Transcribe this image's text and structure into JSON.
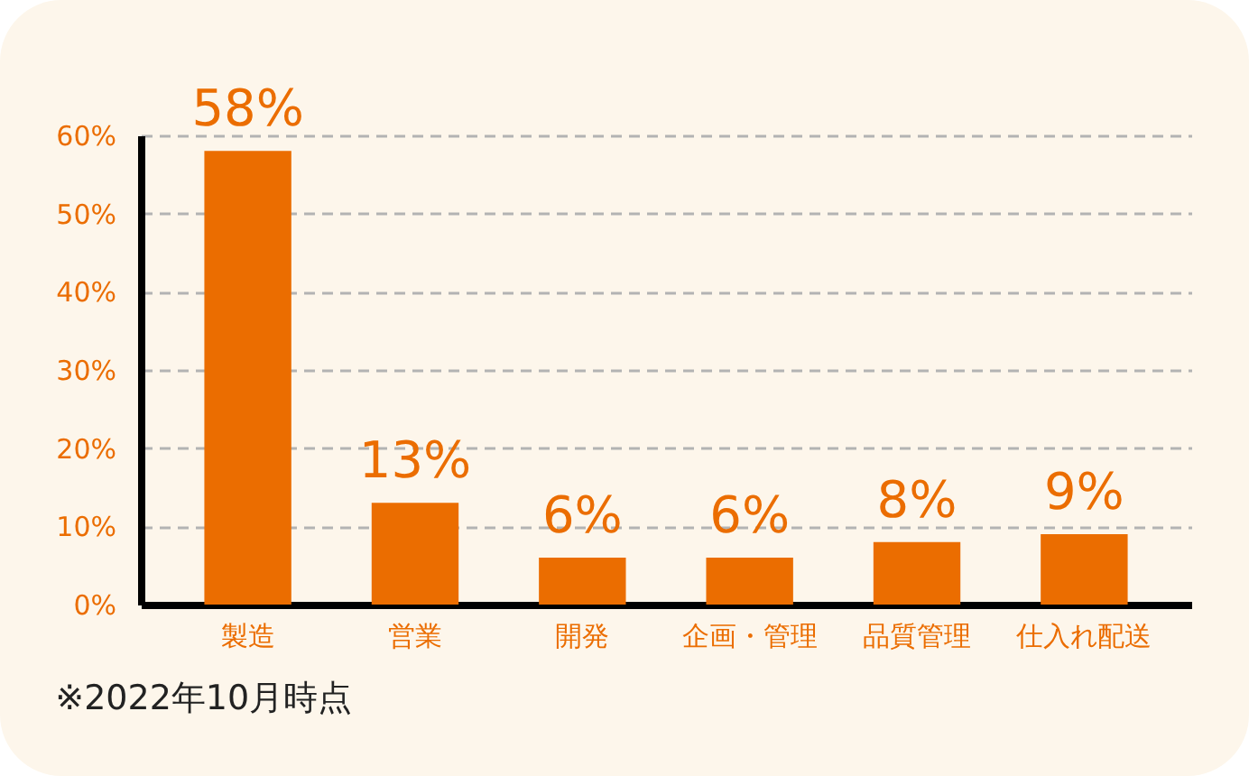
{
  "chart_data": {
    "type": "bar",
    "categories": [
      "製造",
      "営業",
      "開発",
      "企画・管理",
      "品質管理",
      "仕入れ配送"
    ],
    "values": [
      58,
      13,
      6,
      6,
      8,
      9
    ],
    "color": "#eb6d00",
    "ylim": [
      0,
      60
    ],
    "yticks": [
      {
        "value": 0,
        "label": "0%"
      },
      {
        "value": 10,
        "label": "10%"
      },
      {
        "value": 20,
        "label": "20%"
      },
      {
        "value": 30,
        "label": "30%"
      },
      {
        "value": 40,
        "label": "40%"
      },
      {
        "value": 50,
        "label": "50%"
      },
      {
        "value": 60,
        "label": "60%"
      }
    ],
    "grid": "y",
    "value_labels": [
      "58%",
      "13%",
      "6%",
      "6%",
      "8%",
      "9%"
    ],
    "annotations": [
      "※2022年10月時点"
    ]
  }
}
